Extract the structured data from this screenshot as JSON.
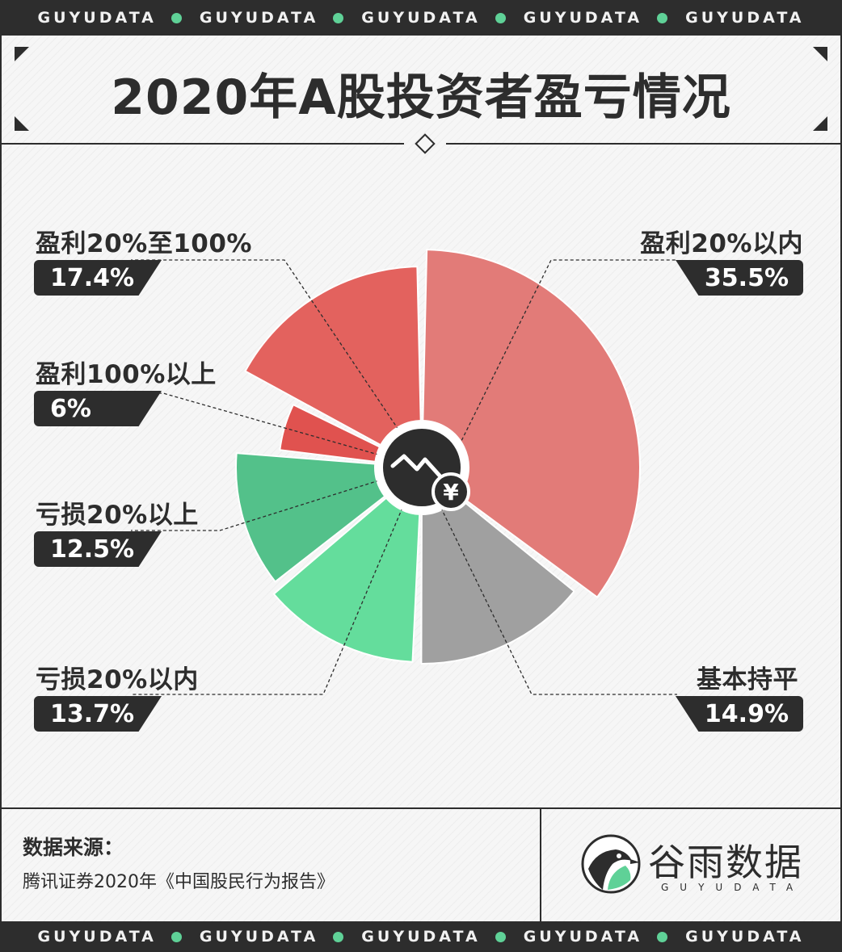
{
  "band": {
    "word": "GUYUDATA",
    "repeat": 5,
    "dot_color": "#5fd197"
  },
  "header": {
    "title": "2020年A股投资者盈亏情况"
  },
  "chart_data": {
    "type": "pie",
    "title": "2020年A股投资者盈亏情况",
    "unit": "%",
    "slices": [
      {
        "label": "盈利20%以内",
        "value": 35.5,
        "display": "35.5%",
        "color": "#e27b78"
      },
      {
        "label": "基本持平",
        "value": 14.9,
        "display": "14.9%",
        "color": "#a0a0a0"
      },
      {
        "label": "亏损20%以内",
        "value": 13.7,
        "display": "13.7%",
        "color": "#64dd9c"
      },
      {
        "label": "亏损20%以上",
        "value": 12.5,
        "display": "12.5%",
        "color": "#53c18a"
      },
      {
        "label": "盈利100%以上",
        "value": 6,
        "display": "6%",
        "color": "#e0524f"
      },
      {
        "label": "盈利20%至100%",
        "value": 17.4,
        "display": "17.4%",
        "color": "#e3625e"
      }
    ],
    "center_icon": "stock-decline-yuan-icon"
  },
  "footer": {
    "source_title": "数据来源：",
    "source_text": "腾讯证券2020年《中国股民行为报告》",
    "brand_cn": "谷雨数据",
    "brand_en": "GUYUDATA",
    "logo_icon": "bird-logo-icon"
  },
  "colors": {
    "dark": "#2d2d2d",
    "background": "#f6f6f6",
    "accent_green": "#5fd197"
  }
}
